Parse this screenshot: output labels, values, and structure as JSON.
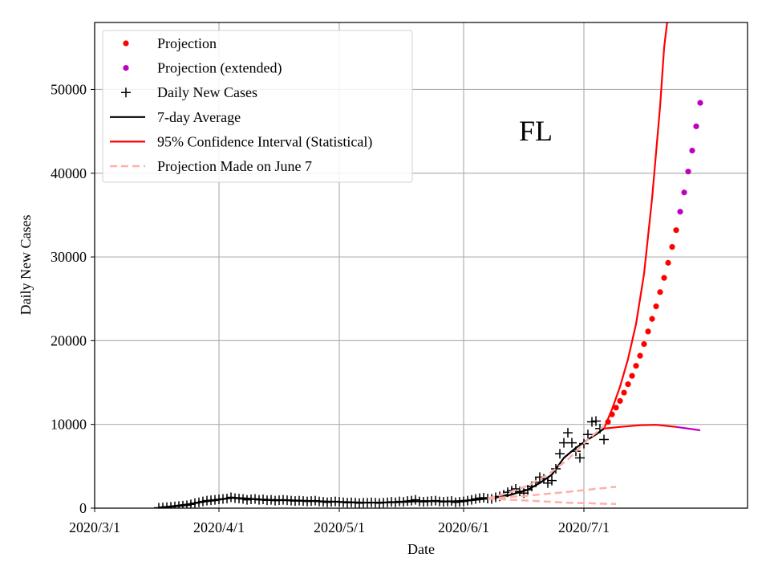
{
  "chart_data": {
    "type": "line",
    "title": "",
    "annotation": "FL",
    "xlabel": "Date",
    "ylabel": "Daily New Cases",
    "xlim": [
      "2020-03-01",
      "2020-07-29"
    ],
    "ylim": [
      0,
      58000
    ],
    "grid": true,
    "legend_placement": "top-left",
    "x_ticks": [
      "2020/3/1",
      "2020/4/1",
      "2020/5/1",
      "2020/6/1",
      "2020/7/1"
    ],
    "x_tick_dates": [
      "2020-03-01",
      "2020-04-01",
      "2020-05-01",
      "2020-06-01",
      "2020-07-01"
    ],
    "y_ticks": [
      0,
      10000,
      20000,
      30000,
      40000,
      50000
    ],
    "legend": [
      {
        "label": "Projection",
        "marker": "dot",
        "color": "#ff0000"
      },
      {
        "label": "Projection (extended)",
        "marker": "dot",
        "color": "#bf00bf"
      },
      {
        "label": "Daily New Cases",
        "marker": "plus",
        "color": "#000000"
      },
      {
        "label": "7-day Average",
        "marker": "line",
        "color": "#000000"
      },
      {
        "label": "95% Confidence Interval (Statistical)",
        "marker": "line",
        "color": "#ff0000"
      },
      {
        "label": "Projection Made on June 7",
        "marker": "dash",
        "color": "#ffb0a8"
      }
    ],
    "series": [
      {
        "name": "Daily New Cases",
        "style": "plus",
        "color": "#000000",
        "points": [
          [
            "2020-03-17",
            50
          ],
          [
            "2020-03-18",
            80
          ],
          [
            "2020-03-19",
            120
          ],
          [
            "2020-03-20",
            150
          ],
          [
            "2020-03-21",
            200
          ],
          [
            "2020-03-22",
            250
          ],
          [
            "2020-03-23",
            300
          ],
          [
            "2020-03-24",
            350
          ],
          [
            "2020-03-25",
            450
          ],
          [
            "2020-03-26",
            600
          ],
          [
            "2020-03-27",
            700
          ],
          [
            "2020-03-28",
            800
          ],
          [
            "2020-03-29",
            900
          ],
          [
            "2020-03-30",
            950
          ],
          [
            "2020-03-31",
            1000
          ],
          [
            "2020-04-01",
            1050
          ],
          [
            "2020-04-02",
            1100
          ],
          [
            "2020-04-03",
            1150
          ],
          [
            "2020-04-04",
            1300
          ],
          [
            "2020-04-05",
            1200
          ],
          [
            "2020-04-06",
            1150
          ],
          [
            "2020-04-07",
            1100
          ],
          [
            "2020-04-08",
            1000
          ],
          [
            "2020-04-09",
            1050
          ],
          [
            "2020-04-10",
            1100
          ],
          [
            "2020-04-11",
            1000
          ],
          [
            "2020-04-12",
            1050
          ],
          [
            "2020-04-13",
            950
          ],
          [
            "2020-04-14",
            1000
          ],
          [
            "2020-04-15",
            900
          ],
          [
            "2020-04-16",
            950
          ],
          [
            "2020-04-17",
            1000
          ],
          [
            "2020-04-18",
            950
          ],
          [
            "2020-04-19",
            900
          ],
          [
            "2020-04-20",
            850
          ],
          [
            "2020-04-21",
            900
          ],
          [
            "2020-04-22",
            850
          ],
          [
            "2020-04-23",
            800
          ],
          [
            "2020-04-24",
            850
          ],
          [
            "2020-04-25",
            900
          ],
          [
            "2020-04-26",
            800
          ],
          [
            "2020-04-27",
            750
          ],
          [
            "2020-04-28",
            700
          ],
          [
            "2020-04-29",
            750
          ],
          [
            "2020-04-30",
            800
          ],
          [
            "2020-05-01",
            750
          ],
          [
            "2020-05-02",
            700
          ],
          [
            "2020-05-03",
            650
          ],
          [
            "2020-05-04",
            700
          ],
          [
            "2020-05-05",
            650
          ],
          [
            "2020-05-06",
            600
          ],
          [
            "2020-05-07",
            650
          ],
          [
            "2020-05-08",
            650
          ],
          [
            "2020-05-09",
            700
          ],
          [
            "2020-05-10",
            650
          ],
          [
            "2020-05-11",
            600
          ],
          [
            "2020-05-12",
            650
          ],
          [
            "2020-05-13",
            700
          ],
          [
            "2020-05-14",
            750
          ],
          [
            "2020-05-15",
            700
          ],
          [
            "2020-05-16",
            800
          ],
          [
            "2020-05-17",
            750
          ],
          [
            "2020-05-18",
            850
          ],
          [
            "2020-05-19",
            900
          ],
          [
            "2020-05-20",
            1000
          ],
          [
            "2020-05-21",
            800
          ],
          [
            "2020-05-22",
            750
          ],
          [
            "2020-05-23",
            800
          ],
          [
            "2020-05-24",
            850
          ],
          [
            "2020-05-25",
            900
          ],
          [
            "2020-05-26",
            800
          ],
          [
            "2020-05-27",
            750
          ],
          [
            "2020-05-28",
            800
          ],
          [
            "2020-05-29",
            850
          ],
          [
            "2020-05-30",
            700
          ],
          [
            "2020-05-31",
            750
          ],
          [
            "2020-06-01",
            800
          ],
          [
            "2020-06-02",
            900
          ],
          [
            "2020-06-03",
            1000
          ],
          [
            "2020-06-04",
            1100
          ],
          [
            "2020-06-05",
            1200
          ],
          [
            "2020-06-06",
            1250
          ],
          [
            "2020-06-07",
            1150
          ],
          [
            "2020-06-08",
            1100
          ],
          [
            "2020-06-09",
            1300
          ],
          [
            "2020-06-10",
            1400
          ],
          [
            "2020-06-11",
            1600
          ],
          [
            "2020-06-12",
            1900
          ],
          [
            "2020-06-13",
            2100
          ],
          [
            "2020-06-14",
            2300
          ],
          [
            "2020-06-15",
            2000
          ],
          [
            "2020-06-16",
            1800
          ],
          [
            "2020-06-17",
            2200
          ],
          [
            "2020-06-18",
            2600
          ],
          [
            "2020-06-19",
            3100
          ],
          [
            "2020-06-20",
            3700
          ],
          [
            "2020-06-21",
            3500
          ],
          [
            "2020-06-22",
            3000
          ],
          [
            "2020-06-23",
            3300
          ],
          [
            "2020-06-24",
            4700
          ],
          [
            "2020-06-25",
            6500
          ],
          [
            "2020-06-26",
            7800
          ],
          [
            "2020-06-27",
            9000
          ],
          [
            "2020-06-28",
            7800
          ],
          [
            "2020-06-29",
            6800
          ],
          [
            "2020-06-30",
            6000
          ],
          [
            "2020-07-01",
            7700
          ],
          [
            "2020-07-02",
            8800
          ],
          [
            "2020-07-03",
            10300
          ],
          [
            "2020-07-04",
            10400
          ],
          [
            "2020-07-05",
            9500
          ],
          [
            "2020-07-06",
            8200
          ]
        ]
      },
      {
        "name": "7-day Average",
        "style": "line",
        "color": "#000000",
        "points": [
          [
            "2020-03-17",
            80
          ],
          [
            "2020-03-20",
            200
          ],
          [
            "2020-03-24",
            450
          ],
          [
            "2020-03-28",
            750
          ],
          [
            "2020-04-01",
            1000
          ],
          [
            "2020-04-04",
            1250
          ],
          [
            "2020-04-08",
            1150
          ],
          [
            "2020-04-12",
            1000
          ],
          [
            "2020-04-18",
            950
          ],
          [
            "2020-04-24",
            850
          ],
          [
            "2020-05-01",
            750
          ],
          [
            "2020-05-08",
            650
          ],
          [
            "2020-05-15",
            700
          ],
          [
            "2020-05-22",
            850
          ],
          [
            "2020-05-29",
            800
          ],
          [
            "2020-06-03",
            950
          ],
          [
            "2020-06-07",
            1150
          ],
          [
            "2020-06-12",
            1500
          ],
          [
            "2020-06-17",
            2200
          ],
          [
            "2020-06-20",
            3000
          ],
          [
            "2020-06-23",
            4000
          ],
          [
            "2020-06-26",
            6000
          ],
          [
            "2020-06-29",
            7200
          ],
          [
            "2020-07-02",
            8200
          ],
          [
            "2020-07-04",
            8800
          ],
          [
            "2020-07-06",
            9500
          ]
        ]
      },
      {
        "name": "Projection",
        "style": "dot",
        "color": "#ff0000",
        "points": [
          [
            "2020-07-07",
            10300
          ],
          [
            "2020-07-08",
            11200
          ],
          [
            "2020-07-09",
            12000
          ],
          [
            "2020-07-10",
            12800
          ],
          [
            "2020-07-11",
            13800
          ],
          [
            "2020-07-12",
            14800
          ],
          [
            "2020-07-13",
            15800
          ],
          [
            "2020-07-14",
            17000
          ],
          [
            "2020-07-15",
            18200
          ],
          [
            "2020-07-16",
            19600
          ],
          [
            "2020-07-17",
            21100
          ],
          [
            "2020-07-18",
            22600
          ],
          [
            "2020-07-19",
            24100
          ],
          [
            "2020-07-20",
            25800
          ],
          [
            "2020-07-21",
            27500
          ],
          [
            "2020-07-22",
            29300
          ],
          [
            "2020-07-23",
            31200
          ],
          [
            "2020-07-24",
            33200
          ]
        ]
      },
      {
        "name": "Projection (extended)",
        "style": "dot",
        "color": "#bf00bf",
        "points": [
          [
            "2020-07-25",
            35400
          ],
          [
            "2020-07-26",
            37700
          ],
          [
            "2020-07-27",
            40200
          ],
          [
            "2020-07-28",
            42700
          ],
          [
            "2020-07-29",
            45600
          ],
          [
            "2020-07-30",
            48400
          ]
        ]
      },
      {
        "name": "95% Confidence Interval (Statistical)",
        "style": "line",
        "color": "#ff0000",
        "points": [
          [
            "2020-07-06",
            9500
          ],
          [
            "2020-07-08",
            11800
          ],
          [
            "2020-07-10",
            14500
          ],
          [
            "2020-07-12",
            17800
          ],
          [
            "2020-07-14",
            22000
          ],
          [
            "2020-07-16",
            28000
          ],
          [
            "2020-07-18",
            37000
          ],
          [
            "2020-07-20",
            48000
          ],
          [
            "2020-07-21",
            55000
          ],
          [
            "2020-07-22",
            59000
          ]
        ]
      },
      {
        "name": "95% Confidence Interval (Statistical)",
        "style": "line",
        "color": "#ff0000",
        "points": [
          [
            "2020-07-06",
            9500
          ],
          [
            "2020-07-10",
            9700
          ],
          [
            "2020-07-15",
            9900
          ],
          [
            "2020-07-19",
            9950
          ],
          [
            "2020-07-24",
            9700
          ]
        ]
      },
      {
        "name": "95% Confidence Interval (Statistical)",
        "style": "line",
        "color": "#bf00bf",
        "points": [
          [
            "2020-07-24",
            9700
          ],
          [
            "2020-07-27",
            9500
          ],
          [
            "2020-07-30",
            9300
          ]
        ]
      },
      {
        "name": "Projection Made on June 7",
        "style": "dash",
        "color": "#ffb0a8",
        "points": [
          [
            "2020-06-07",
            1150
          ],
          [
            "2020-06-12",
            1800
          ],
          [
            "2020-06-17",
            2700
          ],
          [
            "2020-06-22",
            4000
          ],
          [
            "2020-06-27",
            5800
          ],
          [
            "2020-07-02",
            8200
          ],
          [
            "2020-07-06",
            9800
          ]
        ]
      },
      {
        "name": "Projection Made on June 7",
        "style": "dash",
        "color": "#ffb0a8",
        "points": [
          [
            "2020-06-07",
            1150
          ],
          [
            "2020-06-17",
            1500
          ],
          [
            "2020-06-27",
            1950
          ],
          [
            "2020-07-07",
            2450
          ],
          [
            "2020-07-09",
            2550
          ]
        ]
      },
      {
        "name": "Projection Made on June 7",
        "style": "dash",
        "color": "#ffb0a8",
        "points": [
          [
            "2020-06-07",
            1150
          ],
          [
            "2020-06-17",
            900
          ],
          [
            "2020-06-27",
            650
          ],
          [
            "2020-07-07",
            520
          ],
          [
            "2020-07-09",
            500
          ]
        ]
      }
    ]
  }
}
